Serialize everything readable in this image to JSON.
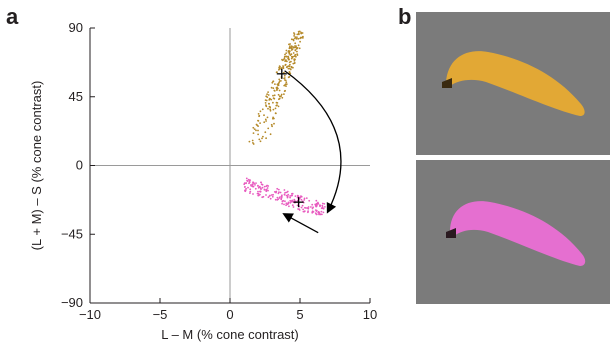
{
  "panels": {
    "a": "a",
    "b": "b"
  },
  "chart_data": {
    "type": "scatter",
    "xlabel": "L – M (% cone contrast)",
    "ylabel": "(L + M) – S (% cone contrast)",
    "xlim": [
      -10,
      10
    ],
    "ylim": [
      -90,
      90
    ],
    "x_ticks": [
      -10,
      -5,
      0,
      5,
      10
    ],
    "x_tick_labels": [
      "−10",
      "−5",
      "0",
      "5",
      "10"
    ],
    "y_ticks": [
      -90,
      -45,
      0,
      45,
      90
    ],
    "y_tick_labels": [
      "−90",
      "−45",
      "0",
      "45",
      "90"
    ],
    "grid": false,
    "series": [
      {
        "color": "#b58a2a",
        "cluster": {
          "x_range": [
            1.2,
            5.3
          ],
          "y_range": [
            12,
            88
          ],
          "mean": [
            3.7,
            60
          ],
          "count": 260
        },
        "marker": {
          "symbol": "+",
          "x": 3.7,
          "y": 60
        }
      },
      {
        "color": "#e85bbf",
        "cluster": {
          "x_range": [
            1.0,
            6.8
          ],
          "y_range": [
            -32,
            -8
          ],
          "mean": [
            4.9,
            -24
          ],
          "count": 230
        },
        "marker": {
          "symbol": "+",
          "x": 4.9,
          "y": -24
        }
      }
    ],
    "annotations": [
      {
        "type": "curved-arrow",
        "from": [
          3.9,
          62
        ],
        "to": [
          7.0,
          -30
        ]
      },
      {
        "type": "arrow",
        "from": [
          6.3,
          -44
        ],
        "to": [
          3.9,
          -32
        ]
      }
    ]
  },
  "photos": [
    {
      "name": "banana-yellow",
      "background": "#7b7b7b",
      "fruit_color": "#e2a835",
      "stem_color": "#3a2a10"
    },
    {
      "name": "banana-pink",
      "background": "#7b7b7b",
      "fruit_color": "#e56fd0",
      "stem_color": "#2a1a20"
    }
  ]
}
